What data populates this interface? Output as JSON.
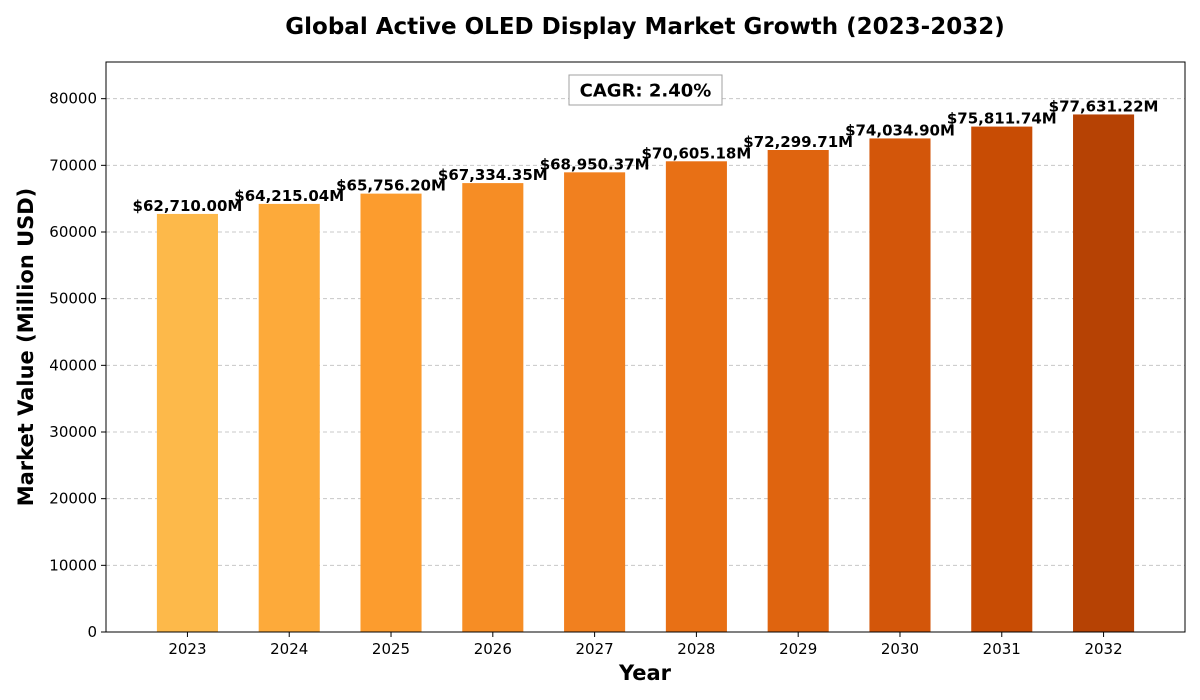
{
  "chart_data": {
    "type": "bar",
    "title": "Global Active OLED Display Market Growth (2023-2032)",
    "xlabel": "Year",
    "ylabel": "Market Value (Million USD)",
    "categories": [
      "2023",
      "2024",
      "2025",
      "2026",
      "2027",
      "2028",
      "2029",
      "2030",
      "2031",
      "2032"
    ],
    "values": [
      62710.0,
      64215.04,
      65756.2,
      67334.35,
      68950.37,
      70605.18,
      72299.71,
      74034.9,
      75811.74,
      77631.22
    ],
    "data_labels": [
      "$62,710.00M",
      "$64,215.04M",
      "$65,756.20M",
      "$67,334.35M",
      "$68,950.37M",
      "$70,605.18M",
      "$72,299.71M",
      "$74,034.90M",
      "$75,811.74M",
      "$77,631.22M"
    ],
    "colors": [
      "#fdb94a",
      "#fdaa3a",
      "#fc9c2e",
      "#f68d25",
      "#f1801f",
      "#e87015",
      "#df640f",
      "#d3560a",
      "#c84c04",
      "#b64204"
    ],
    "ylim": [
      0,
      85500
    ],
    "yticks": [
      0,
      10000,
      20000,
      30000,
      40000,
      50000,
      60000,
      70000,
      80000
    ],
    "grid": true,
    "annotation": "CAGR: 2.40%"
  }
}
